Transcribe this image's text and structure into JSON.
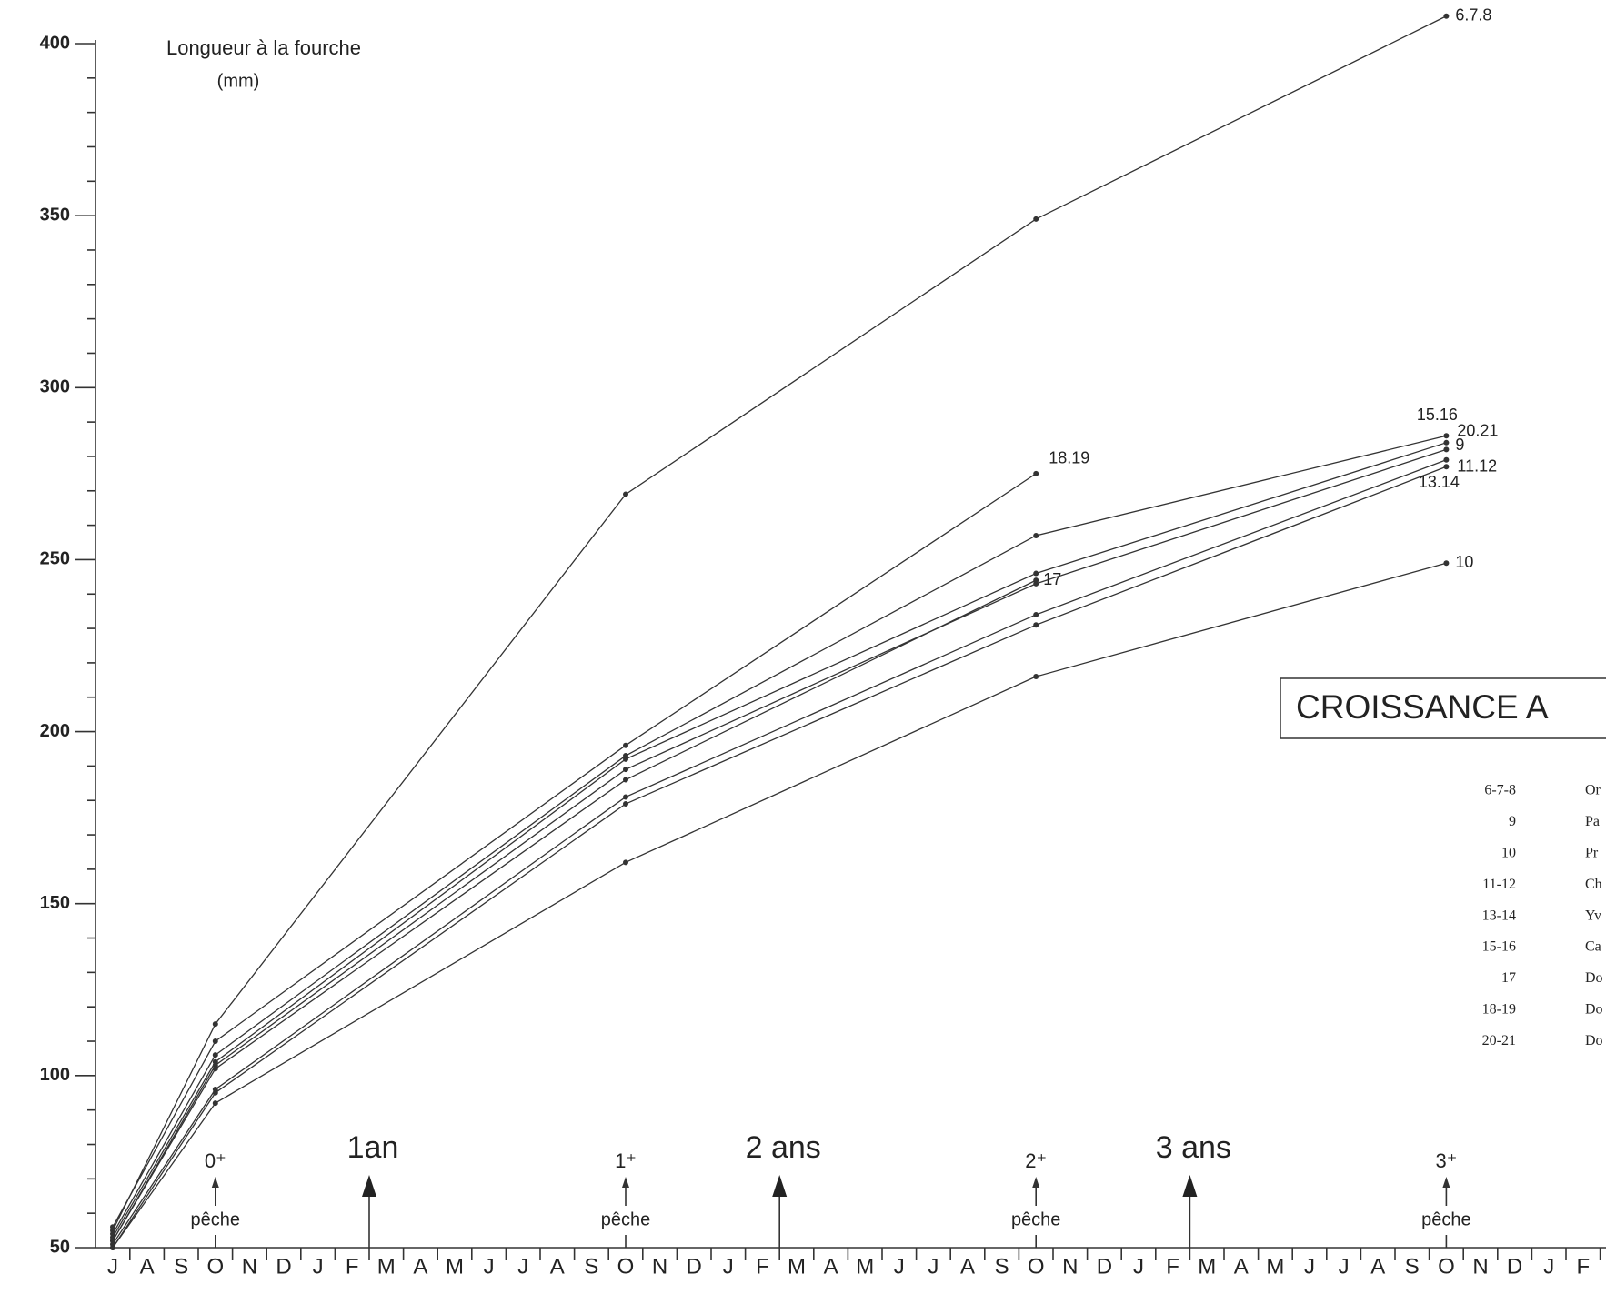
{
  "chart_data": {
    "type": "line",
    "title": "CROISSANCE  A",
    "y_label": "Longueur à la fourche",
    "y_unit": "(mm)",
    "categories": [
      "J",
      "A",
      "S",
      "O",
      "N",
      "D",
      "J",
      "F",
      "M",
      "A",
      "M",
      "J",
      "J",
      "A",
      "S",
      "O",
      "N",
      "D",
      "J",
      "F",
      "M",
      "A",
      "M",
      "J",
      "J",
      "A",
      "S",
      "O",
      "N",
      "D",
      "J",
      "F",
      "M",
      "A",
      "M",
      "J",
      "J",
      "A",
      "S",
      "O",
      "N",
      "D",
      "J",
      "F"
    ],
    "ylim": [
      50,
      400
    ],
    "yticks": [
      50,
      100,
      150,
      200,
      250,
      300,
      350,
      400
    ],
    "yminorticks": [
      60,
      70,
      80,
      90,
      110,
      120,
      130,
      140,
      160,
      170,
      180,
      190,
      210,
      220,
      230,
      240,
      260,
      270,
      280,
      290,
      310,
      320,
      330,
      340,
      360,
      370,
      380,
      390
    ],
    "series": [
      {
        "name": "6.7.8",
        "color": "#333",
        "x": [
          0,
          3,
          15,
          27,
          39
        ],
        "values": [
          55,
          115,
          269,
          349,
          408
        ]
      },
      {
        "name": "18.19",
        "color": "#333",
        "x": [
          0,
          3,
          15,
          27
        ],
        "values": [
          56,
          110,
          196,
          275
        ]
      },
      {
        "name": "15.16",
        "color": "#333",
        "x": [
          0,
          3,
          15,
          27,
          39
        ],
        "values": [
          54,
          106,
          193,
          257,
          286
        ]
      },
      {
        "name": "20.21",
        "color": "#333",
        "x": [
          0,
          3,
          15,
          27,
          39
        ],
        "values": [
          53,
          104,
          192,
          246,
          284
        ]
      },
      {
        "name": "9",
        "color": "#333",
        "x": [
          0,
          3,
          15,
          27,
          39
        ],
        "values": [
          52,
          103,
          189,
          243,
          282
        ]
      },
      {
        "name": "17",
        "color": "#333",
        "x": [
          0,
          3,
          15,
          27
        ],
        "values": [
          52,
          102,
          186,
          244
        ]
      },
      {
        "name": "11.12",
        "color": "#333",
        "x": [
          0,
          3,
          15,
          27,
          39
        ],
        "values": [
          51,
          96,
          181,
          234,
          279
        ]
      },
      {
        "name": "13.14",
        "color": "#333",
        "x": [
          0,
          3,
          15,
          27,
          39
        ],
        "values": [
          50,
          95,
          179,
          231,
          277
        ]
      },
      {
        "name": "10",
        "color": "#333",
        "x": [
          0,
          3,
          15,
          27,
          39
        ],
        "values": [
          50,
          92,
          162,
          216,
          249
        ]
      }
    ],
    "age_marks": [
      {
        "label": "0⁺",
        "note": "pêche",
        "x": 3
      },
      {
        "label": "1⁺",
        "note": "pêche",
        "x": 15
      },
      {
        "label": "2⁺",
        "note": "pêche",
        "x": 27
      },
      {
        "label": "3⁺",
        "note": "pêche",
        "x": 39
      }
    ],
    "year_marks": [
      {
        "label": "1an",
        "x": 7.5
      },
      {
        "label": "2 ans",
        "x": 19.5
      },
      {
        "label": "3 ans",
        "x": 31.5
      }
    ],
    "legend_table": [
      {
        "code": "6-7-8",
        "name": "Or"
      },
      {
        "code": "9",
        "name": "Pa"
      },
      {
        "code": "10",
        "name": "Pr"
      },
      {
        "code": "11-12",
        "name": "Ch"
      },
      {
        "code": "13-14",
        "name": "Yv"
      },
      {
        "code": "15-16",
        "name": "Ca"
      },
      {
        "code": "17",
        "name": "Do"
      },
      {
        "code": "18-19",
        "name": "Do"
      },
      {
        "code": "20-21",
        "name": "Do"
      }
    ]
  }
}
